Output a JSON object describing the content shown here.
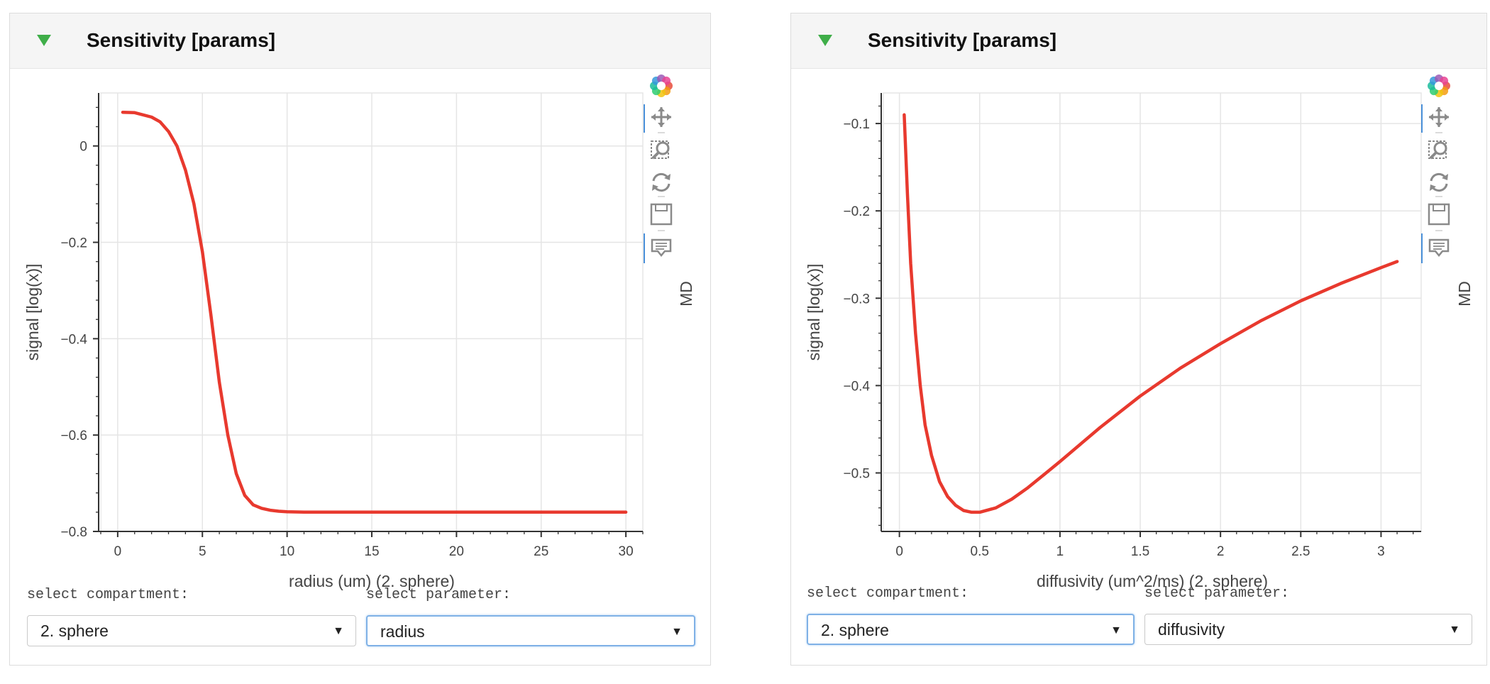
{
  "panels": [
    {
      "title": "Sensitivity [params]",
      "compartment_label": "select compartment:",
      "compartment_value": "2. sphere",
      "parameter_label": "select parameter:",
      "parameter_value": "radius",
      "toolbar_side_label": "MD"
    },
    {
      "title": "Sensitivity [params]",
      "compartment_label": "select compartment:",
      "compartment_value": "2. sphere",
      "parameter_label": "select parameter:",
      "parameter_value": "diffusivity",
      "toolbar_side_label": "MD"
    }
  ],
  "toolbar_icons": [
    "bokeh-logo-icon",
    "pan-icon",
    "box-zoom-icon",
    "reset-icon",
    "save-icon",
    "hover-icon"
  ],
  "colors": {
    "line": "#e8392e",
    "grid": "#e5e5e5",
    "axis": "#333333",
    "header": "#f5f5f5",
    "toggle": "#3fae49"
  },
  "chart_data": [
    {
      "type": "line",
      "title": "",
      "xlabel": "radius (um) (2. sphere)",
      "ylabel": "signal  [log(x)]",
      "xlim": [
        -1,
        31
      ],
      "ylim": [
        -0.8,
        0.11
      ],
      "xticks": [
        0,
        5,
        10,
        15,
        20,
        25,
        30
      ],
      "xtick_labels": [
        "0",
        "5",
        "10",
        "15",
        "20",
        "25",
        "30"
      ],
      "yticks": [
        0,
        -0.2,
        -0.4,
        -0.6,
        -0.8
      ],
      "ytick_labels": [
        "0",
        "−0.2",
        "−0.4",
        "−0.6",
        "−0.8"
      ],
      "series": [
        {
          "name": "signal",
          "x": [
            0.3,
            1,
            2,
            2.5,
            3,
            3.5,
            4,
            4.5,
            5,
            5.5,
            6,
            6.5,
            7,
            7.5,
            8,
            8.5,
            9,
            9.5,
            10,
            11,
            12,
            15,
            20,
            25,
            30
          ],
          "y": [
            0.07,
            0.069,
            0.06,
            0.05,
            0.03,
            0.0,
            -0.05,
            -0.12,
            -0.22,
            -0.35,
            -0.49,
            -0.6,
            -0.68,
            -0.725,
            -0.745,
            -0.752,
            -0.756,
            -0.758,
            -0.759,
            -0.76,
            -0.76,
            -0.76,
            -0.76,
            -0.76,
            -0.76
          ]
        }
      ]
    },
    {
      "type": "line",
      "title": "",
      "xlabel": "diffusivity (um^2/ms) (2. sphere)",
      "ylabel": "signal  [log(x)]",
      "xlim": [
        -0.1,
        3.25
      ],
      "ylim": [
        -0.567,
        -0.065
      ],
      "xticks": [
        0,
        0.5,
        1,
        1.5,
        2,
        2.5,
        3
      ],
      "xtick_labels": [
        "0",
        "0.5",
        "1",
        "1.5",
        "2",
        "2.5",
        "3"
      ],
      "yticks": [
        -0.1,
        -0.2,
        -0.3,
        -0.4,
        -0.5
      ],
      "ytick_labels": [
        "−0.1",
        "−0.2",
        "−0.3",
        "−0.4",
        "−0.5"
      ],
      "series": [
        {
          "name": "signal",
          "x": [
            0.03,
            0.05,
            0.07,
            0.1,
            0.13,
            0.16,
            0.2,
            0.25,
            0.3,
            0.35,
            0.4,
            0.45,
            0.5,
            0.6,
            0.7,
            0.8,
            0.9,
            1.0,
            1.25,
            1.5,
            1.75,
            2.0,
            2.25,
            2.5,
            2.75,
            3.0,
            3.1
          ],
          "y": [
            -0.09,
            -0.18,
            -0.26,
            -0.34,
            -0.4,
            -0.445,
            -0.48,
            -0.51,
            -0.527,
            -0.537,
            -0.543,
            -0.545,
            -0.545,
            -0.54,
            -0.53,
            -0.517,
            -0.502,
            -0.487,
            -0.448,
            -0.412,
            -0.38,
            -0.352,
            -0.326,
            -0.303,
            -0.283,
            -0.265,
            -0.258
          ]
        }
      ]
    }
  ]
}
